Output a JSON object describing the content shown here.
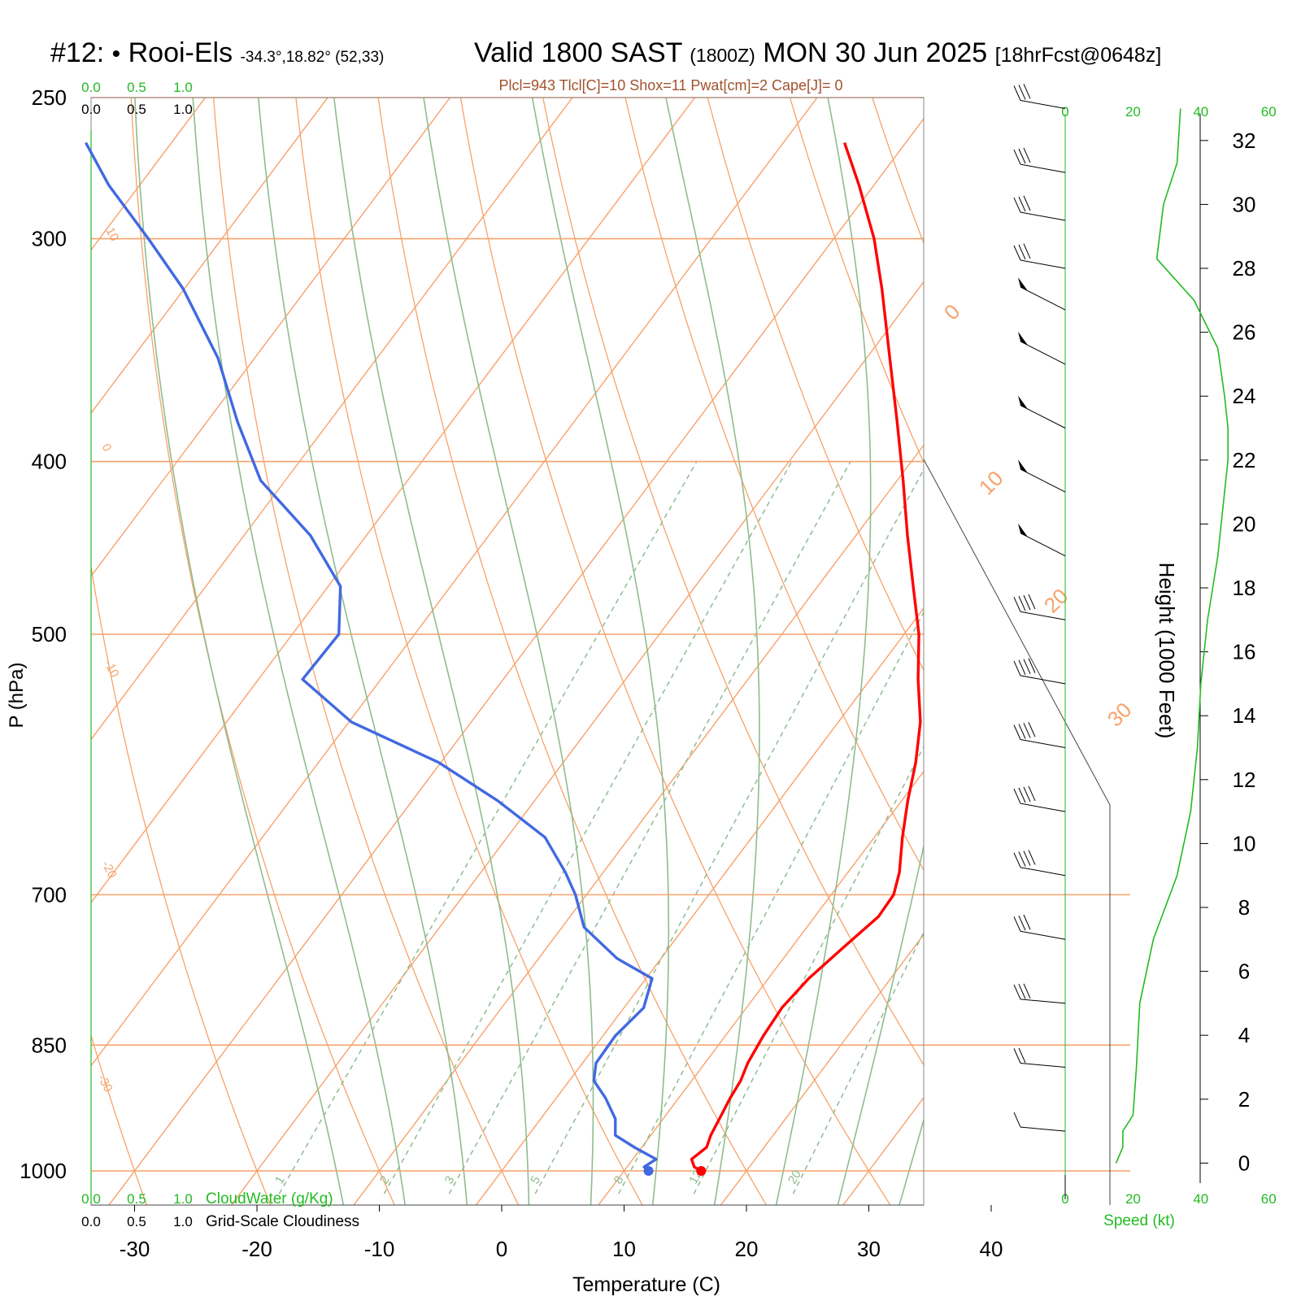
{
  "header": {
    "station_no": "#12:",
    "station_dot": "•",
    "station_name": "Rooi-Els",
    "station_coords": "-34.3°,18.82° (52,33)",
    "valid_label": "Valid 1800 SAST",
    "valid_zulu": "(1800Z)",
    "valid_date": "MON 30 Jun 2025",
    "forecast": "[18hrFcst@0648z]",
    "indices": "Plcl=943 Tlcl[C]=10 Shox=11 Pwat[cm]=2 Cape[J]= 0"
  },
  "colors": {
    "temperature": "#ff0000",
    "dewpoint": "#4169e1",
    "isotherms_isobars": "#f7a26b",
    "dry_adiabats": "#f7a26b",
    "moist_adiabats": "#8fbc8f",
    "mixing_ratio": "#8fbc8f",
    "green_text": "#22bb22",
    "indices_text": "#a0522d",
    "wind_speed": "#22bb22"
  },
  "chart_data": [
    {
      "type": "skew-t",
      "ylabel": "P (hPa)",
      "xlabel": "Temperature (C)",
      "pressure_ticks": [
        250,
        300,
        400,
        500,
        700,
        850,
        1000
      ],
      "temperature_ticks": [
        -30,
        -20,
        -10,
        0,
        10,
        20,
        30,
        40
      ],
      "dry_adiabat_labels": [
        "10",
        "0",
        "-10",
        "-20",
        "-30"
      ],
      "moist_adiabat_labels": [
        "0",
        "10",
        "20",
        "30"
      ],
      "mixing_ratio_labels": [
        "1",
        "2",
        "3",
        "5",
        "8",
        "12",
        "20"
      ],
      "series": [
        {
          "name": "Temperature",
          "pressure": [
            1000,
            995,
            985,
            970,
            955,
            935,
            910,
            890,
            870,
            840,
            810,
            780,
            750,
            720,
            700,
            680,
            650,
            620,
            590,
            560,
            530,
            500,
            470,
            440,
            410,
            380,
            350,
            320,
            300,
            280,
            265
          ],
          "temperature": [
            16.3,
            15.5,
            14.8,
            15.3,
            14.9,
            14.6,
            14.2,
            14.0,
            13.5,
            13.1,
            12.9,
            13.3,
            14.2,
            15.2,
            15.1,
            14.2,
            12.3,
            10.5,
            8.8,
            6.7,
            3.9,
            1.2,
            -2.2,
            -5.8,
            -9.5,
            -13.6,
            -18.1,
            -23.0,
            -26.7,
            -31.2,
            -35.0
          ]
        },
        {
          "name": "Dewpoint",
          "pressure": [
            1000,
            995,
            985,
            970,
            955,
            935,
            910,
            890,
            870,
            840,
            810,
            780,
            760,
            730,
            700,
            680,
            650,
            620,
            590,
            560,
            530,
            500,
            470,
            440,
            410,
            380,
            350,
            320,
            300,
            280,
            265
          ],
          "temperature": [
            12.0,
            11.4,
            11.9,
            9.4,
            7.1,
            6.1,
            4.0,
            2.0,
            1.1,
            1.0,
            1.6,
            0.5,
            -3.6,
            -8.2,
            -10.9,
            -13.1,
            -16.9,
            -23.0,
            -30.2,
            -39.8,
            -46.4,
            -46.2,
            -49.0,
            -54.6,
            -62.0,
            -67.5,
            -73.0,
            -80.1,
            -86.0,
            -92.5,
            -97.0
          ]
        }
      ],
      "wind_height_axis": {
        "label": "Height (1000 Feet)",
        "ticks": [
          0,
          2,
          4,
          6,
          8,
          10,
          12,
          14,
          16,
          18,
          20,
          22,
          24,
          26,
          28,
          30,
          32
        ]
      },
      "wind_speed_profile": {
        "name": "Speed (kt)",
        "axis_ticks": [
          "0",
          "20",
          "40",
          "60"
        ],
        "height_kft": [
          0.0,
          0.5,
          1.0,
          1.5,
          3,
          5,
          7,
          9,
          11,
          13,
          15,
          17,
          19,
          21,
          22,
          23,
          24,
          25.5,
          27,
          28.3,
          30,
          31.3,
          33
        ],
        "speed_kt": [
          15,
          17,
          17,
          20,
          21,
          22,
          26,
          33,
          37,
          39,
          40,
          42,
          45,
          47,
          48,
          48,
          47,
          45,
          38,
          27,
          29,
          33,
          34
        ]
      },
      "wind_barbs": {
        "height_kft": [
          33,
          31,
          29.5,
          28,
          26.7,
          25,
          23,
          21,
          19,
          17,
          15,
          13,
          11,
          9,
          7,
          5,
          3,
          1
        ],
        "speed_kt": [
          30,
          30,
          30,
          30,
          50,
          50,
          50,
          50,
          50,
          40,
          40,
          40,
          40,
          35,
          30,
          25,
          20,
          10
        ]
      },
      "cloud_scales": {
        "cloud_water_label": "CloudWater (g/Kg)",
        "cloudiness_label": "Grid-Scale Cloudiness",
        "ticks": [
          "0.0",
          "0.5",
          "1.0"
        ]
      }
    }
  ]
}
